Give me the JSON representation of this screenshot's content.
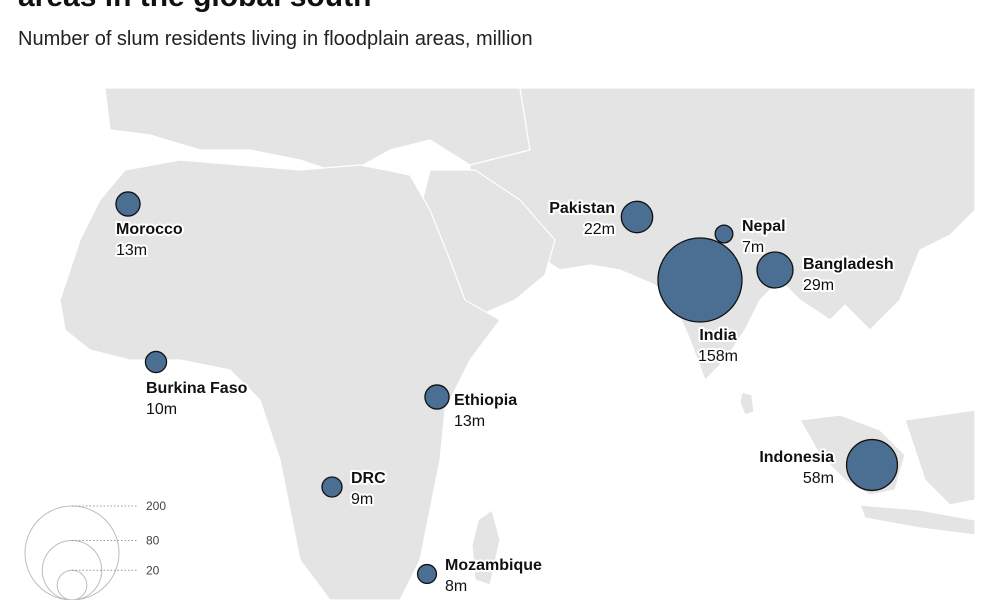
{
  "header": {
    "title": "areas in the global south",
    "subtitle": "Number of slum residents living in floodplain areas, million"
  },
  "map": {
    "colors": {
      "land": "#e4e4e4",
      "border": "#ffffff",
      "bubble": "#4a6f93",
      "bubble_stroke": "#111111"
    },
    "bubbles": [
      {
        "name": "Morocco",
        "value_label": "13m",
        "value": 13
      },
      {
        "name": "Burkina Faso",
        "value_label": "10m",
        "value": 10
      },
      {
        "name": "Ethiopia",
        "value_label": "13m",
        "value": 13
      },
      {
        "name": "DRC",
        "value_label": "9m",
        "value": 9
      },
      {
        "name": "Mozambique",
        "value_label": "8m",
        "value": 8
      },
      {
        "name": "Pakistan",
        "value_label": "22m",
        "value": 22
      },
      {
        "name": "Nepal",
        "value_label": "7m",
        "value": 7
      },
      {
        "name": "India",
        "value_label": "158m",
        "value": 158
      },
      {
        "name": "Bangladesh",
        "value_label": "29m",
        "value": 29
      },
      {
        "name": "Indonesia",
        "value_label": "58m",
        "value": 58
      }
    ],
    "legend": {
      "values": [
        200,
        80,
        20
      ],
      "labels": [
        "200",
        "80",
        "20"
      ]
    }
  }
}
